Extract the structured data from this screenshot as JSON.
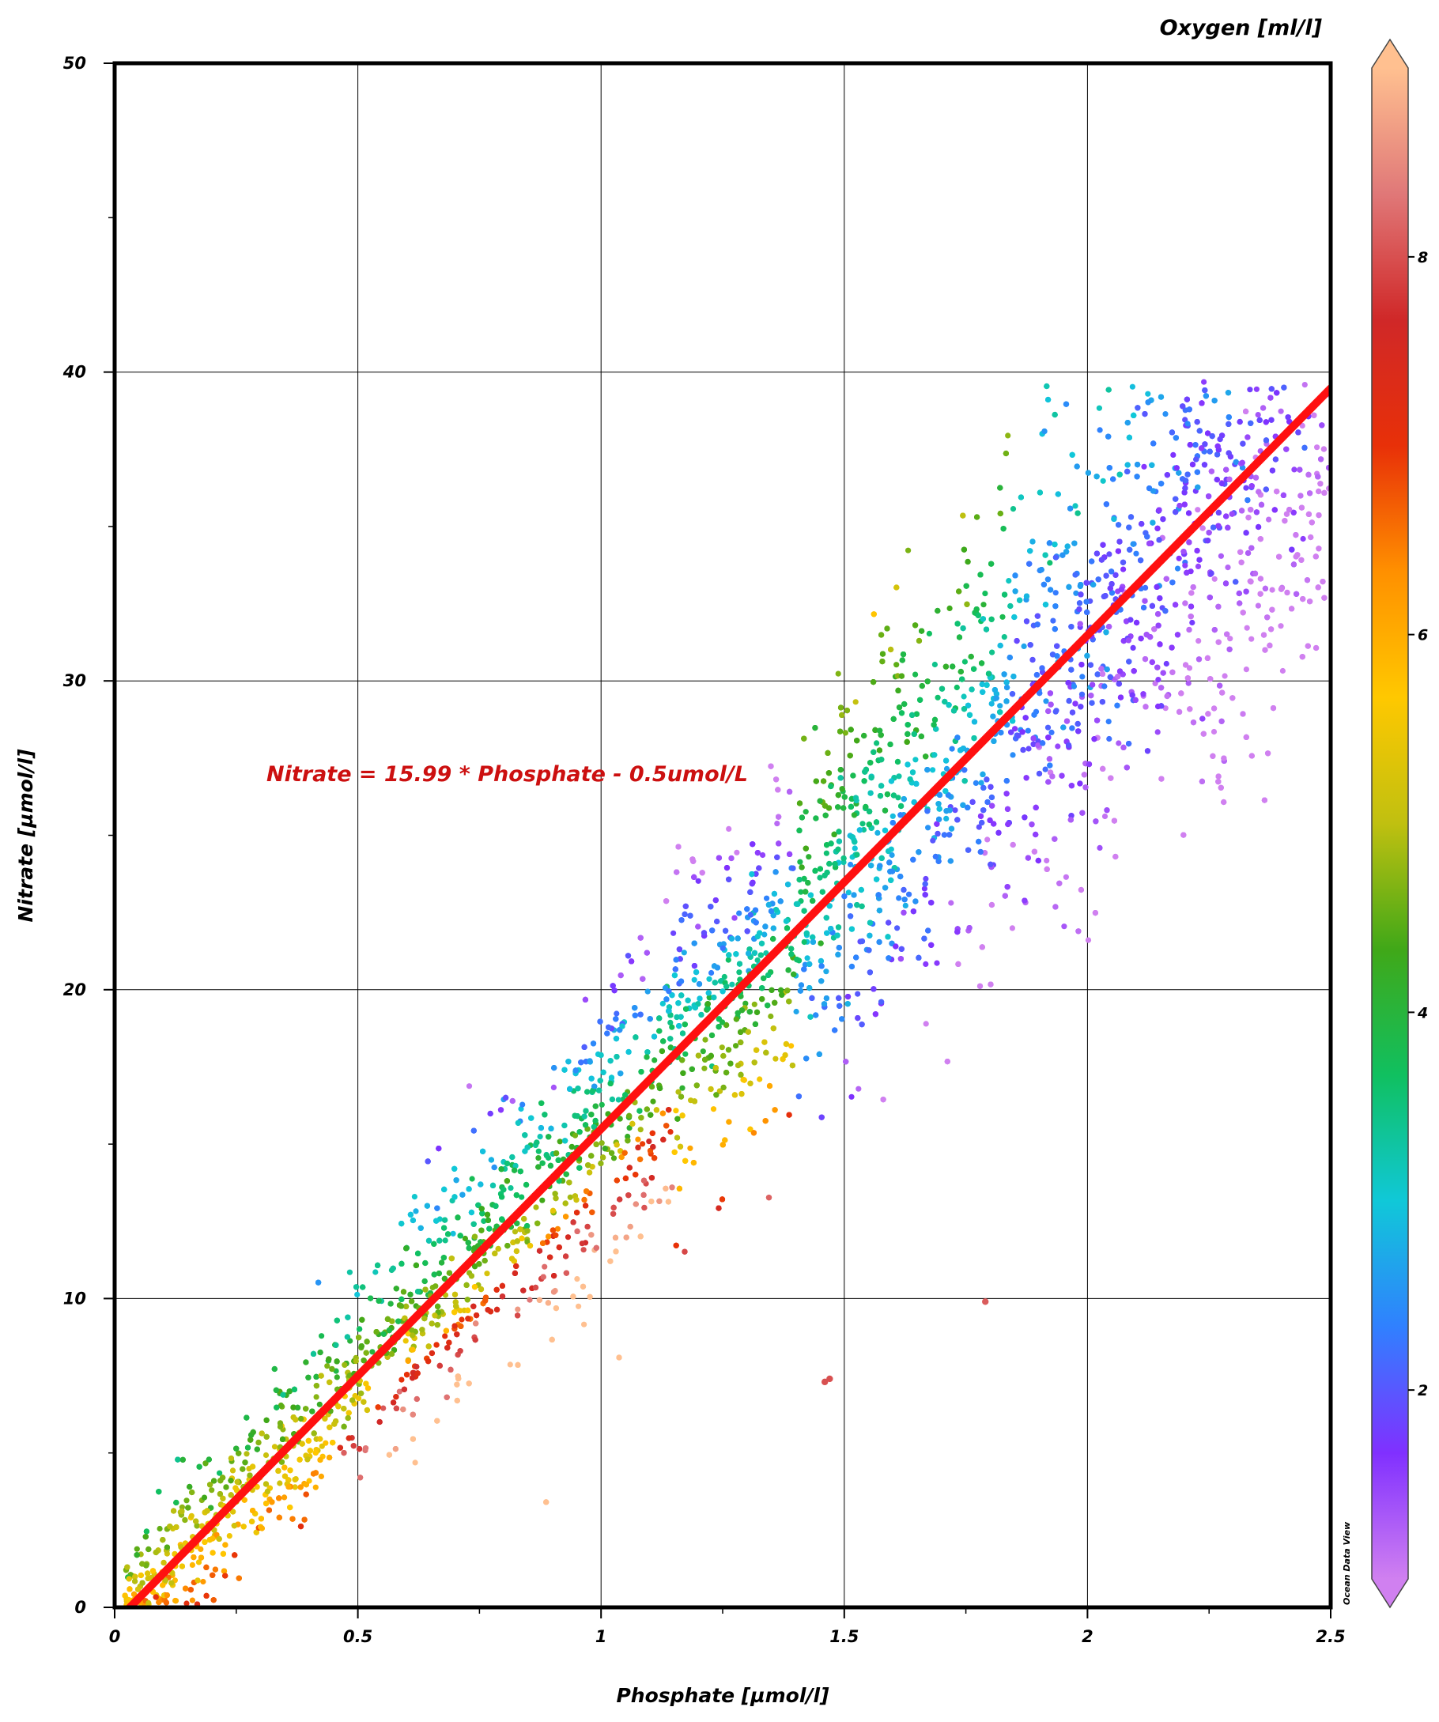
{
  "chart_data": {
    "type": "scatter",
    "title": "",
    "xlabel": "Phosphate [µmol/l]",
    "ylabel": "Nitrate [µmol/l]",
    "xlim": [
      0,
      2.5
    ],
    "ylim": [
      0,
      50
    ],
    "x_ticks": [
      "0",
      "0.5",
      "1",
      "1.5",
      "2",
      "2.5"
    ],
    "y_ticks": [
      "0",
      "10",
      "20",
      "30",
      "40",
      "50"
    ],
    "grid": true,
    "colorbar": {
      "label": "Oxygen [ml/l]",
      "range": [
        1,
        9
      ],
      "ticks": [
        "2",
        "4",
        "6",
        "8"
      ],
      "colors": [
        "#d080f0",
        "#8030ff",
        "#3080ff",
        "#10c8d8",
        "#10c060",
        "#40a818",
        "#c0c010",
        "#ffc800",
        "#ff9000",
        "#e83008",
        "#d02828",
        "#e07878",
        "#ffc090"
      ]
    },
    "regression": {
      "label": "Nitrate = 15.99 * Phosphate - 0.5umol/L",
      "slope": 15.99,
      "intercept": -0.5,
      "color": "#ff1010",
      "label_color": "#cc1010"
    },
    "points_summary": {
      "x_range": [
        0,
        2.5
      ],
      "y_range": [
        0,
        39.7
      ],
      "trend": "strong positive linear relation; low-oxygen (violet/blue) at high phosphate, high-oxygen (red/orange) below line at 0.5-1.0 phosphate"
    },
    "outliers": [
      {
        "x": 1.79,
        "y": 9.9,
        "o2": 8.1
      },
      {
        "x": 1.47,
        "y": 7.4,
        "o2": 8.0
      },
      {
        "x": 1.46,
        "y": 7.3,
        "o2": 8.0
      }
    ],
    "watermark": "Ocean Data View"
  }
}
